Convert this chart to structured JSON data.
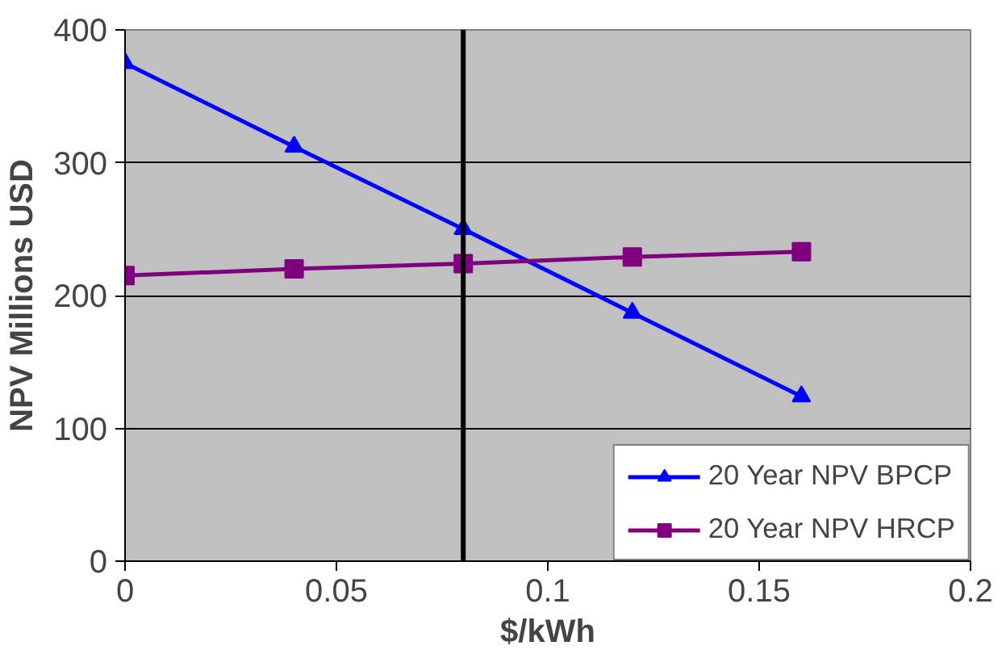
{
  "chart_data": {
    "type": "line",
    "xlabel": "$/kWh",
    "ylabel": "NPV Millions USD",
    "x": [
      0,
      0.04,
      0.08,
      0.12,
      0.16
    ],
    "series": [
      {
        "name": "20 Year NPV BPCP",
        "color": "#0000ff",
        "marker": "triangle",
        "values": [
          375,
          312,
          250,
          187,
          124
        ]
      },
      {
        "name": "20 Year NPV HRCP",
        "color": "#800080",
        "marker": "square",
        "values": [
          215,
          220,
          224,
          229,
          233
        ]
      }
    ],
    "xlim": [
      0,
      0.2
    ],
    "xticks": [
      0,
      0.05,
      0.1,
      0.15,
      0.2
    ],
    "ylim": [
      0,
      400
    ],
    "yticks": [
      0,
      100,
      200,
      300,
      400
    ],
    "grid": "y",
    "legend": "bottom right",
    "line_style": "solid",
    "ref_lines": [
      {
        "axis": "x",
        "value": 0.08,
        "color": "#000000"
      }
    ]
  }
}
